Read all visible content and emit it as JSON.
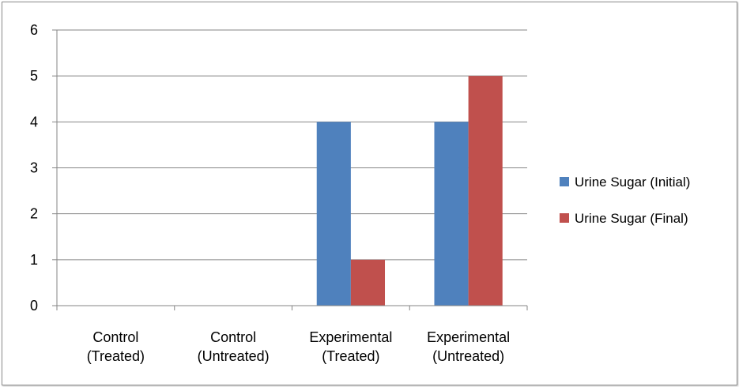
{
  "chart_data": {
    "type": "bar",
    "title": "",
    "xlabel": "",
    "ylabel": "",
    "categories": [
      [
        "Control",
        "(Treated)"
      ],
      [
        "Control",
        "(Untreated)"
      ],
      [
        "Experimental",
        "(Treated)"
      ],
      [
        "Experimental",
        "(Untreated)"
      ]
    ],
    "series": [
      {
        "name": "Urine Sugar (Initial)",
        "color": "#4f81bd",
        "values": [
          0,
          0,
          4,
          4
        ]
      },
      {
        "name": "Urine Sugar (Final)",
        "color": "#c0504d",
        "values": [
          0,
          0,
          1,
          5
        ]
      }
    ],
    "ylim": [
      0,
      6
    ],
    "yticks": [
      "0",
      "1",
      "2",
      "3",
      "4",
      "5",
      "6"
    ],
    "grid": true,
    "legend_position": "right"
  }
}
